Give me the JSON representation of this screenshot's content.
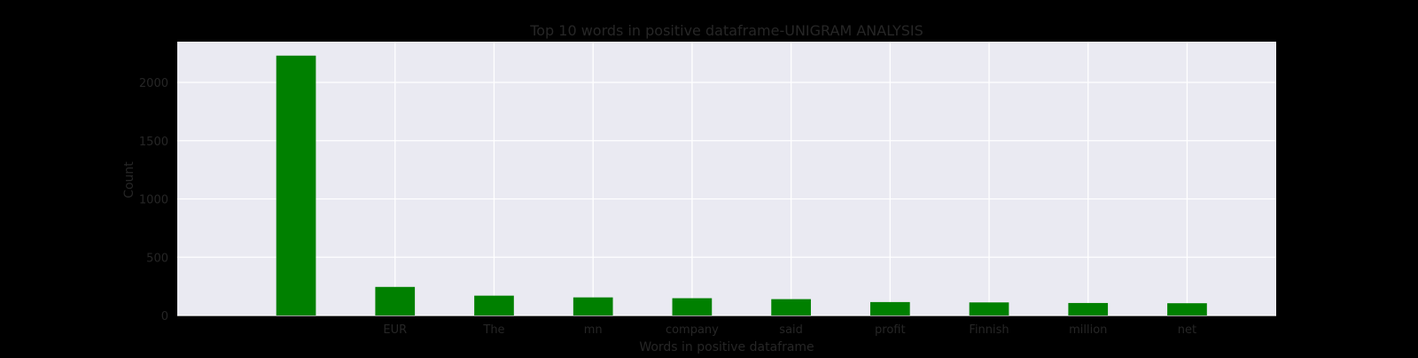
{
  "chart_data": {
    "type": "bar",
    "title": "Top 10 words in positive dataframe-UNIGRAM ANALYSIS",
    "xlabel": "Words in positive dataframe",
    "ylabel": "Count",
    "categories": [
      "",
      "EUR",
      "The",
      "mn",
      "company",
      "said",
      "profit",
      "Finnish",
      "million",
      "net"
    ],
    "values": [
      2230,
      245,
      170,
      155,
      148,
      140,
      115,
      112,
      107,
      105
    ],
    "ylim": [
      0,
      2350
    ],
    "yticks": [
      0,
      500,
      1000,
      1500,
      2000
    ],
    "grid": true,
    "legend": "none",
    "colors": {
      "bar": "#008000",
      "plot_background": "#EAEAF2",
      "figure_background": "#000000",
      "grid": "#FFFFFF",
      "text": "#262626"
    }
  }
}
